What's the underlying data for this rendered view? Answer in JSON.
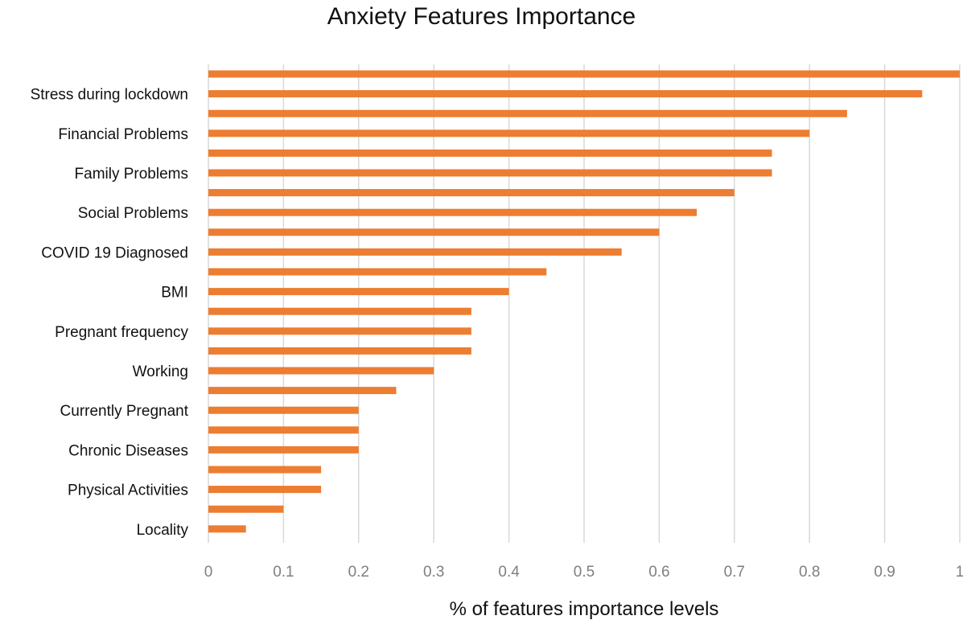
{
  "chart_data": {
    "type": "bar",
    "orientation": "horizontal",
    "title": "Anxiety Features Importance",
    "xlabel": "% of features importance levels",
    "ylabel": "",
    "xlim": [
      0,
      1
    ],
    "x_ticks": [
      "0",
      "0.1",
      "0.2",
      "0.3",
      "0.4",
      "0.5",
      "0.6",
      "0.7",
      "0.8",
      "0.9",
      "1"
    ],
    "grid": "vertical",
    "legend": "none",
    "bar_color": "#ED7D31",
    "grid_color": "#D9D9D9",
    "categories": [
      "",
      "Stress during lockdown",
      "",
      "Financial Problems",
      "",
      "Family Problems",
      "",
      "Social Problems",
      "",
      "COVID 19 Diagnosed",
      "",
      "BMI",
      "",
      "Pregnant frequency",
      "",
      "Working",
      "",
      "Currently Pregnant",
      "",
      "Chronic Diseases",
      "",
      "Physical Activities",
      "",
      "Locality"
    ],
    "values": [
      1.0,
      0.95,
      0.85,
      0.8,
      0.75,
      0.75,
      0.7,
      0.65,
      0.6,
      0.55,
      0.45,
      0.4,
      0.35,
      0.35,
      0.35,
      0.3,
      0.25,
      0.2,
      0.2,
      0.2,
      0.15,
      0.15,
      0.1,
      0.05
    ]
  }
}
